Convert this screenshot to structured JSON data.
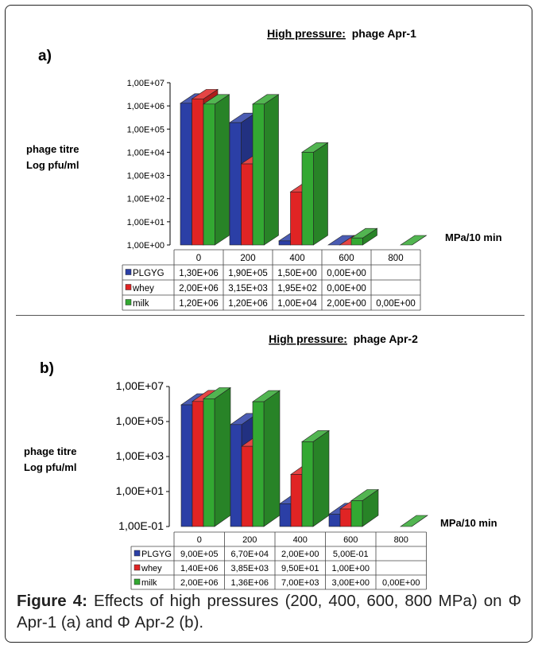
{
  "chart_data": [
    {
      "type": "bar",
      "panel": "a)",
      "title_underlined": "High pressure:",
      "title_rest": "phage Apr-1",
      "ylabel": [
        "phage titre",
        "Log pfu/ml"
      ],
      "xlabel": "MPa/10 min",
      "y_scale": "log",
      "ylim": [
        1,
        10000000
      ],
      "y_ticks": [
        "1,00E+00",
        "1,00E+01",
        "1,00E+02",
        "1,00E+03",
        "1,00E+04",
        "1,00E+05",
        "1,00E+06",
        "1,00E+07"
      ],
      "categories": [
        "0",
        "200",
        "400",
        "600",
        "800"
      ],
      "series": [
        {
          "name": "PLGYG",
          "color": "#2b3fa6",
          "values": [
            1300000,
            190000,
            1.5,
            0,
            null
          ],
          "labels": [
            "1,30E+06",
            "1,90E+05",
            "1,50E+00",
            "0,00E+00",
            ""
          ]
        },
        {
          "name": "whey",
          "color": "#e02424",
          "values": [
            2000000,
            3150,
            195,
            0,
            null
          ],
          "labels": [
            "2,00E+06",
            "3,15E+03",
            "1,95E+02",
            "0,00E+00",
            ""
          ]
        },
        {
          "name": "milk",
          "color": "#33a832",
          "values": [
            1200000,
            1200000,
            10000,
            2,
            0
          ],
          "labels": [
            "1,20E+06",
            "1,20E+06",
            "1,00E+04",
            "2,00E+00",
            "0,00E+00"
          ]
        }
      ]
    },
    {
      "type": "bar",
      "panel": "b)",
      "title_underlined": "High pressure:",
      "title_rest": "phage Apr-2",
      "ylabel": [
        "phage titre",
        "Log pfu/ml"
      ],
      "xlabel": "MPa/10 min",
      "y_scale": "log",
      "ylim": [
        0.1,
        10000000
      ],
      "y_ticks": [
        "1,00E-01",
        "1,00E+01",
        "1,00E+03",
        "1,00E+05",
        "1,00E+07"
      ],
      "categories": [
        "0",
        "200",
        "400",
        "600",
        "800"
      ],
      "series": [
        {
          "name": "PLGYG",
          "color": "#2b3fa6",
          "values": [
            900000,
            67000,
            2,
            0.5,
            null
          ],
          "labels": [
            "9,00E+05",
            "6,70E+04",
            "2,00E+00",
            "5,00E-01",
            ""
          ]
        },
        {
          "name": "whey",
          "color": "#e02424",
          "values": [
            1400000,
            3850,
            95,
            1,
            null
          ],
          "labels": [
            "1,40E+06",
            "3,85E+03",
            "9,50E+01",
            "1,00E+00",
            ""
          ]
        },
        {
          "name": "milk",
          "color": "#33a832",
          "values": [
            2000000,
            1360000,
            7000,
            3,
            0
          ],
          "labels": [
            "2,00E+06",
            "1,36E+06",
            "7,00E+03",
            "3,00E+00",
            "0,00E+00"
          ]
        }
      ]
    }
  ],
  "caption": {
    "label": "Figure 4:",
    "text": " Effects of high pressures (200, 400, 600, 800 MPa) on Φ Apr-1 (a) and Φ Apr-2 (b)."
  }
}
